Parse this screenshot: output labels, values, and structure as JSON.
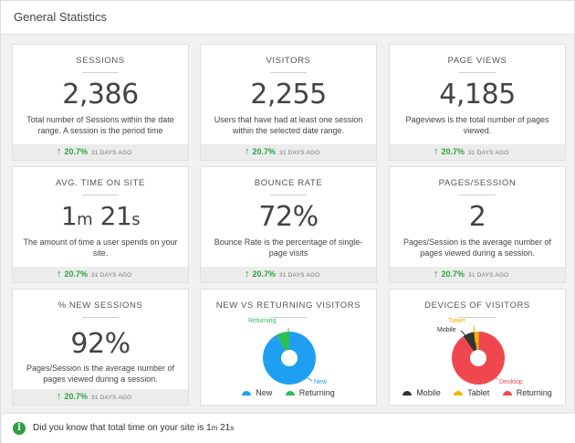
{
  "panel": {
    "title": "General Statistics"
  },
  "stats": [
    {
      "title": "SESSIONS",
      "value": "2,386",
      "desc": "Total number of Sessions within the date range. A session is the period time",
      "change": "20.7%",
      "ago": "31 DAYS AGO"
    },
    {
      "title": "VISITORS",
      "value": "2,255",
      "desc": "Users that have had at least one session within the selected date range.",
      "change": "20.7%",
      "ago": "31 DAYS AGO"
    },
    {
      "title": "PAGE VIEWS",
      "value": "4,185",
      "desc": "Pageviews is the total number of pages viewed.",
      "change": "20.7%",
      "ago": "31 DAYS AGO"
    },
    {
      "title": "AVG. TIME ON SITE",
      "value_min": "1",
      "unit_min": "m",
      "value_sec": "21",
      "unit_sec": "s",
      "desc": "The amount of time a user spends on your site.",
      "change": "20.7%",
      "ago": "31 DAYS AGO"
    },
    {
      "title": "BOUNCE RATE",
      "value": "72%",
      "desc": "Bounce Rate is the percentage of single-page visits",
      "change": "20.7%",
      "ago": "31 DAYS AGO"
    },
    {
      "title": "PAGES/SESSION",
      "value": "2",
      "desc": "Pages/Session is the average number of pages viewed during a session.",
      "change": "20.7%",
      "ago": "31 DAYS AGO"
    },
    {
      "title": "% NEW SESSIONS",
      "value": "92%",
      "desc": "Pages/Session is the average number of pages viewed during a session.",
      "change": "20.7%",
      "ago": "31 DAYS AGO"
    }
  ],
  "charts": {
    "new_vs_returning": {
      "title": "NEW VS RETURNING VISITORS",
      "slice_labels": {
        "returning": "Returning",
        "new": "New"
      },
      "legend": {
        "new": "New",
        "returning": "Returning"
      }
    },
    "devices": {
      "title": "DEVICES OF VISITORS",
      "slice_labels": {
        "tablet": "Tablet",
        "mobile": "Mobile",
        "desktop": "Desktop"
      },
      "legend": {
        "mobile": "Mobile",
        "tablet": "Tablet",
        "returning": "Returning"
      }
    }
  },
  "tip": {
    "icon": "info-icon",
    "text_prefix": "Did you know that total time on your site is ",
    "value_min": "1",
    "unit_min": "m",
    "value_sec": "21",
    "unit_sec": "s"
  },
  "colors": {
    "green": "#2ea043",
    "new": "#1e9ff2",
    "returning": "#2bbf54",
    "mobile": "#333333",
    "tablet": "#f5b000",
    "desktop": "#f0474f"
  },
  "chart_data": [
    {
      "type": "pie",
      "title": "NEW VS RETURNING VISITORS",
      "categories": [
        "New",
        "Returning"
      ],
      "values": [
        92,
        8
      ]
    },
    {
      "type": "pie",
      "title": "DEVICES OF VISITORS",
      "categories": [
        "Mobile",
        "Tablet",
        "Desktop"
      ],
      "values": [
        7,
        3,
        90
      ]
    }
  ]
}
